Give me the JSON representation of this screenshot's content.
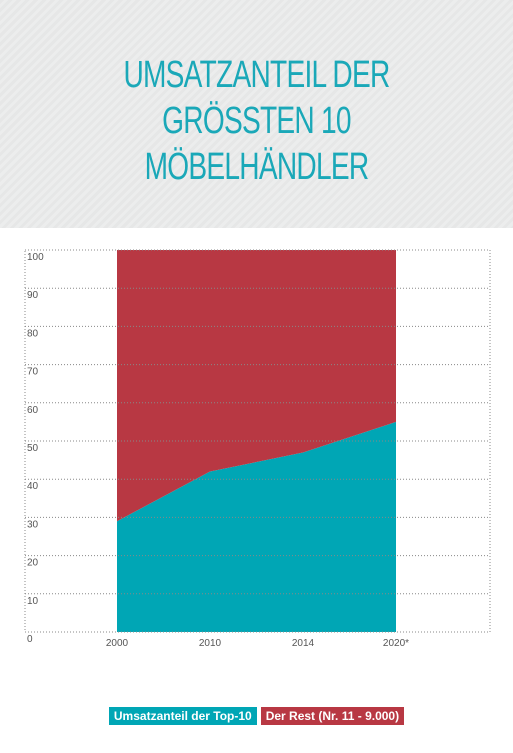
{
  "chart_data": {
    "type": "stacked_area",
    "title": [
      "UMSATZANTEIL DER",
      "GRÖSSTEN 10",
      "MÖBELHÄNDLER"
    ],
    "categories": [
      "2000",
      "2010",
      "2014",
      "2020*"
    ],
    "series": [
      {
        "name": "Umsatzanteil der Top-10",
        "color": "#00a6b5",
        "values": [
          29,
          42,
          47,
          55
        ]
      },
      {
        "name": "Der Rest (Nr. 11 - 9.000)",
        "color": "#b83843",
        "values": [
          71,
          58,
          53,
          45
        ]
      }
    ],
    "ylim": [
      0,
      100
    ],
    "yticks": [
      0,
      10,
      20,
      30,
      40,
      50,
      60,
      70,
      80,
      90,
      100
    ],
    "grid": true
  }
}
